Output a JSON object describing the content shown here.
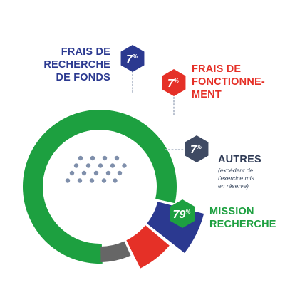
{
  "chart_data": {
    "type": "pie",
    "title": "",
    "slices": [
      {
        "key": "frais_recherche_fonds",
        "value": 7,
        "display": "7",
        "unit": "%",
        "color": "#2b3990",
        "label_lines": [
          "FRAIS DE",
          "RECHERCHE",
          "DE FONDS"
        ],
        "sub_lines": []
      },
      {
        "key": "frais_fonctionnement",
        "value": 7,
        "display": "7",
        "unit": "%",
        "color": "#e53027",
        "label_lines": [
          "FRAIS DE",
          "FONCTIONNE-",
          "MENT"
        ],
        "sub_lines": []
      },
      {
        "key": "autres",
        "value": 7,
        "display": "7",
        "unit": "%",
        "color": "#666666",
        "label_lines": [
          "AUTRES"
        ],
        "sub_lines": [
          "(excédent de",
          "l'exercice mis",
          "en réserve)"
        ]
      },
      {
        "key": "mission_recherche",
        "value": 79,
        "display": "79",
        "unit": "%",
        "color": "#1da040",
        "label_lines": [
          "MISSION",
          "RECHERCHE"
        ],
        "sub_lines": []
      }
    ],
    "label_colors": {
      "frais_recherche_fonds": "#2b3990",
      "frais_fonctionnement": "#e53027",
      "autres": "#2e3a55",
      "mission_recherche": "#1da040"
    },
    "hexagon_colors": {
      "frais_recherche_fonds": "#2b3990",
      "frais_fonctionnement": "#e53027",
      "autres": "#3f4a63",
      "mission_recherche": "#1da040"
    },
    "decor": {
      "dot_color": "#7f8fab"
    }
  }
}
